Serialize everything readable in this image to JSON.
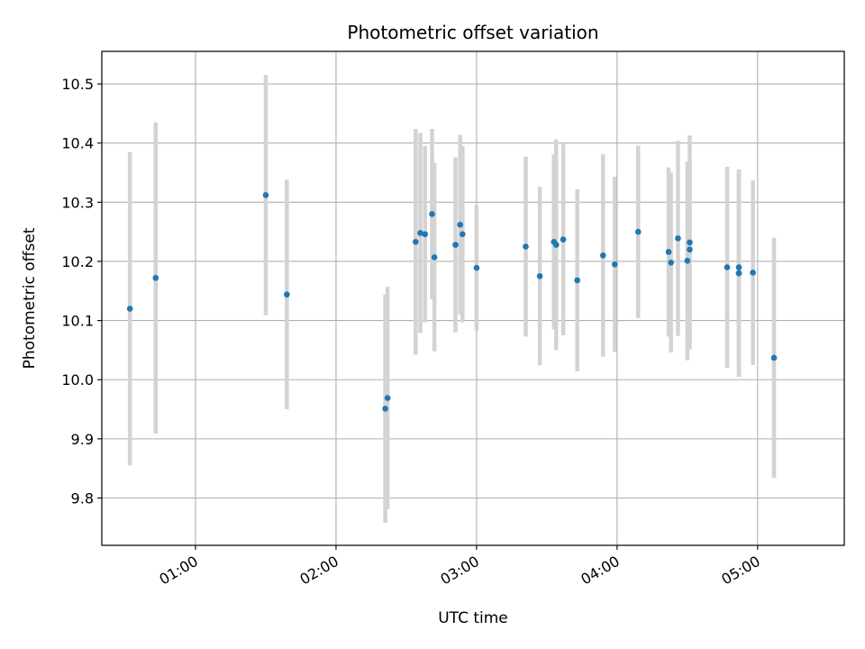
{
  "chart_data": {
    "type": "scatter",
    "title": "Photometric offset variation",
    "xlabel": "UTC time",
    "ylabel": "Photometric offset",
    "x_ticks": [
      "01:00",
      "02:00",
      "03:00",
      "04:00",
      "05:00"
    ],
    "y_ticks": [
      "9.8",
      "9.9",
      "10.0",
      "10.1",
      "10.2",
      "10.3",
      "10.4",
      "10.5"
    ],
    "xlim": [
      "00:20",
      "05:37"
    ],
    "ylim": [
      9.72,
      10.555
    ],
    "grid": true,
    "colors": {
      "point": "#1f77b4",
      "errorbar": "#d3d3d3",
      "grid": "#b0b0b0"
    },
    "points": [
      {
        "x": "00:32",
        "y": 10.12,
        "err": 0.265
      },
      {
        "x": "00:43",
        "y": 10.172,
        "err": 0.263
      },
      {
        "x": "01:30",
        "y": 10.312,
        "err": 0.203
      },
      {
        "x": "01:39",
        "y": 10.144,
        "err": 0.194
      },
      {
        "x": "02:21",
        "y": 9.951,
        "err": 0.193
      },
      {
        "x": "02:22",
        "y": 9.969,
        "err": 0.188
      },
      {
        "x": "02:34",
        "y": 10.233,
        "err": 0.191
      },
      {
        "x": "02:36",
        "y": 10.248,
        "err": 0.169
      },
      {
        "x": "02:38",
        "y": 10.246,
        "err": 0.149
      },
      {
        "x": "02:41",
        "y": 10.28,
        "err": 0.144
      },
      {
        "x": "02:42",
        "y": 10.207,
        "err": 0.159
      },
      {
        "x": "02:51",
        "y": 10.228,
        "err": 0.148
      },
      {
        "x": "02:53",
        "y": 10.262,
        "err": 0.152
      },
      {
        "x": "02:54",
        "y": 10.246,
        "err": 0.149
      },
      {
        "x": "03:00",
        "y": 10.189,
        "err": 0.106
      },
      {
        "x": "03:21",
        "y": 10.225,
        "err": 0.152
      },
      {
        "x": "03:27",
        "y": 10.175,
        "err": 0.151
      },
      {
        "x": "03:33",
        "y": 10.233,
        "err": 0.148
      },
      {
        "x": "03:34",
        "y": 10.228,
        "err": 0.178
      },
      {
        "x": "03:37",
        "y": 10.237,
        "err": 0.162
      },
      {
        "x": "03:43",
        "y": 10.168,
        "err": 0.154
      },
      {
        "x": "03:54",
        "y": 10.21,
        "err": 0.171
      },
      {
        "x": "03:59",
        "y": 10.195,
        "err": 0.148
      },
      {
        "x": "04:09",
        "y": 10.25,
        "err": 0.146
      },
      {
        "x": "04:22",
        "y": 10.216,
        "err": 0.143
      },
      {
        "x": "04:23",
        "y": 10.198,
        "err": 0.152
      },
      {
        "x": "04:26",
        "y": 10.239,
        "err": 0.165
      },
      {
        "x": "04:30",
        "y": 10.201,
        "err": 0.168
      },
      {
        "x": "04:31",
        "y": 10.232,
        "err": 0.181
      },
      {
        "x": "04:31",
        "y": 10.22,
        "err": 0.15
      },
      {
        "x": "04:47",
        "y": 10.19,
        "err": 0.17
      },
      {
        "x": "04:52",
        "y": 10.18,
        "err": 0.175
      },
      {
        "x": "04:52",
        "y": 10.19,
        "err": 0.165
      },
      {
        "x": "04:52",
        "y": 10.18,
        "err": 0.17
      },
      {
        "x": "04:58",
        "y": 10.181,
        "err": 0.156
      },
      {
        "x": "05:07",
        "y": 10.037,
        "err": 0.203
      }
    ]
  }
}
